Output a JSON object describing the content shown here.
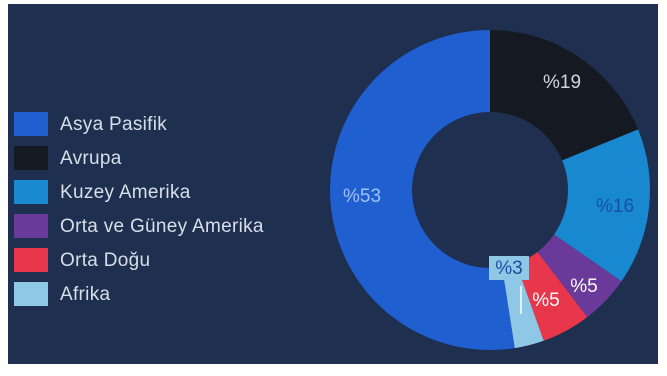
{
  "chart_data": {
    "type": "pie",
    "title": "",
    "categories": [
      "Asya Pasifik",
      "Avrupa",
      "Kuzey Amerika",
      "Orta ve Güney Amerika",
      "Orta Doğu",
      "Afrika"
    ],
    "values": [
      53,
      19,
      16,
      5,
      5,
      3
    ],
    "labels": [
      "%53",
      "%19",
      "%16",
      "%5",
      "%5",
      "%3"
    ],
    "colors": [
      "#1f5fd0",
      "#151a22",
      "#1888d0",
      "#6a3a9a",
      "#e8364a",
      "#8ec8e6"
    ],
    "donut": true,
    "background": "#1f2f4f",
    "legend_position": "left"
  }
}
